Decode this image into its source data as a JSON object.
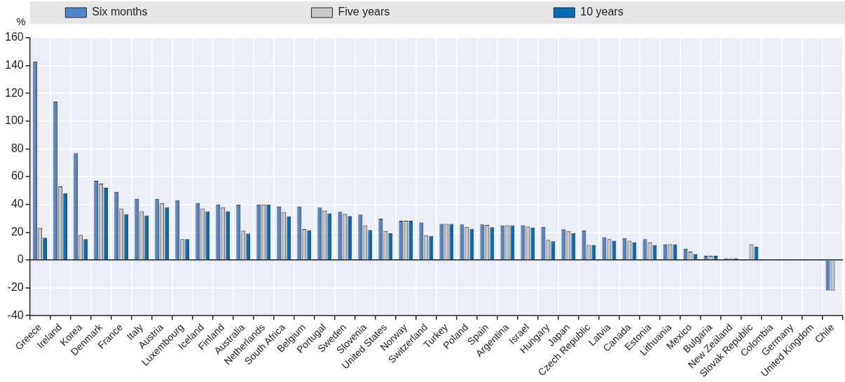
{
  "chart_data": {
    "type": "bar",
    "ylabel": "%",
    "categories": [
      "Greece",
      "Ireland",
      "Korea",
      "Denmark",
      "France",
      "Italy",
      "Austria",
      "Luxembourg",
      "Iceland",
      "Finland",
      "Australia",
      "Netherlands",
      "South Africa",
      "Belgium",
      "Portugal",
      "Sweden",
      "Slovenia",
      "United States",
      "Norway",
      "Switzerland",
      "Turkey",
      "Poland",
      "Spain",
      "Argentina",
      "Israel",
      "Hungary",
      "Japan",
      "Czech Republic",
      "Latvia",
      "Canada",
      "Estonia",
      "Lithuania",
      "Mexico",
      "Bulgaria",
      "New Zealand",
      "Slovak Republic",
      "Colombia",
      "Germany",
      "United Kingdom",
      "Chile"
    ],
    "series": [
      {
        "name": "Six months",
        "color": "#4f84c8",
        "values": [
          143,
          114,
          77,
          57,
          49,
          44,
          44,
          43,
          41,
          40,
          40,
          40,
          38.5,
          38.5,
          37.7,
          34.7,
          32.6,
          29.8,
          28.2,
          27,
          25.9,
          25.6,
          25.6,
          25,
          25,
          23.8,
          22,
          21.3,
          16.4,
          15.7,
          15,
          11.3,
          8.1,
          3,
          1.2,
          null,
          null,
          null,
          null,
          -22
        ]
      },
      {
        "name": "Five years",
        "color": "#c8c8c8",
        "values": [
          23,
          53,
          18,
          55,
          37,
          35,
          41,
          15,
          37,
          38,
          21,
          40,
          34.6,
          22.2,
          35.6,
          33.2,
          25,
          20.8,
          28.2,
          17.8,
          25.9,
          23.8,
          25.2,
          25,
          24,
          14.5,
          20.8,
          10.8,
          15,
          13.9,
          12.7,
          11.3,
          6,
          3,
          1.2,
          11.3,
          null,
          null,
          null,
          -22
        ]
      },
      {
        "name": "10 years",
        "color": "#006bb6",
        "values": [
          16,
          48,
          15,
          52,
          33,
          32,
          38,
          15,
          35,
          35,
          19,
          40,
          31.4,
          21.3,
          33.5,
          31.6,
          21.5,
          19.2,
          28.2,
          17.3,
          25.9,
          22.4,
          23.6,
          25,
          23.3,
          13.4,
          19.2,
          10.8,
          13.9,
          12.7,
          10.8,
          11.3,
          4.2,
          3,
          1.2,
          9.7,
          null,
          null,
          null,
          null
        ]
      }
    ],
    "ylim": [
      -40,
      160
    ],
    "yticks": [
      -40,
      -20,
      0,
      20,
      40,
      60,
      80,
      100,
      120,
      140,
      160
    ],
    "grid": true,
    "legend": "top"
  }
}
